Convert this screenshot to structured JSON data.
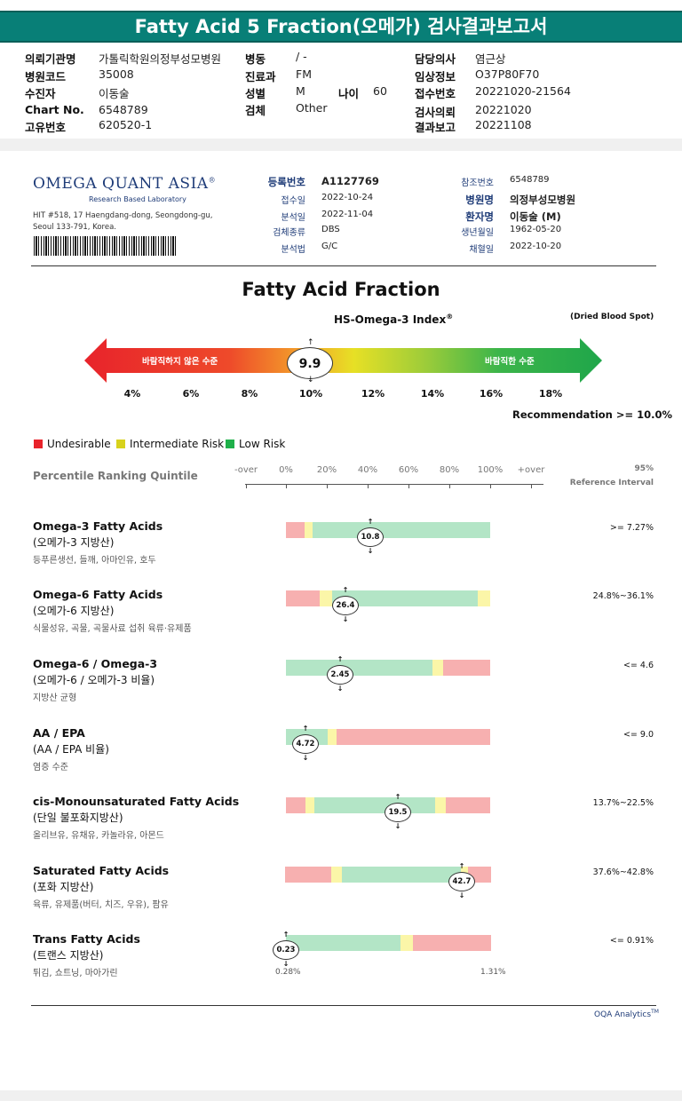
{
  "report": {
    "title": "Fatty Acid 5 Fraction(오메가) 검사결과보고서",
    "header": {
      "col1": [
        {
          "label": "의뢰기관명",
          "value": "가톨릭학원의정부성모병원"
        },
        {
          "label": "병원코드",
          "value": "35008"
        },
        {
          "label": "수진자",
          "value": "이동술"
        },
        {
          "label": "Chart No.",
          "value": "6548789"
        },
        {
          "label": "고유번호",
          "value": "620520-1"
        }
      ],
      "col2": [
        {
          "label": "병동",
          "value": "/ -"
        },
        {
          "label": "진료과",
          "value": "FM"
        },
        {
          "label": "성별",
          "value": "M"
        },
        {
          "label": "검체",
          "value": "Other"
        }
      ],
      "age": {
        "label": "나이",
        "value": "60"
      },
      "col3": [
        {
          "label": "담당의사",
          "value": "염근상"
        },
        {
          "label": "임상정보",
          "value": "O37P80F70"
        },
        {
          "label": "접수번호",
          "value": "20221020-21564"
        },
        {
          "label": "검사의뢰",
          "value": "20221020"
        },
        {
          "label": "결과보고",
          "value": "20221108"
        }
      ]
    }
  },
  "lab": {
    "logo": "OMEGA QUANT ASIA",
    "logo_mark": "®",
    "tagline": "Research Based Laboratory",
    "address1": "HIT #518, 17 Haengdang-dong, Seongdong-gu,",
    "address2": "Seoul 133-791, Korea.",
    "info_left": [
      {
        "label": "등록번호",
        "value": "A1127769",
        "strong": true
      },
      {
        "label": "접수일",
        "value": "2022-10-24"
      },
      {
        "label": "분석일",
        "value": "2022-11-04"
      },
      {
        "label": "검체종류",
        "value": "DBS"
      },
      {
        "label": "분석법",
        "value": "G/C"
      }
    ],
    "info_right": [
      {
        "label": "참조번호",
        "value": "6548789"
      },
      {
        "label": "병원명",
        "value": "의정부성모병원",
        "strong": true
      },
      {
        "label": "환자명",
        "value": "이동술 (M)",
        "strong": true
      },
      {
        "label": "생년월일",
        "value": "1962-05-20"
      },
      {
        "label": "채혈일",
        "value": "2022-10-20"
      }
    ]
  },
  "index": {
    "title": "Fatty Acid Fraction",
    "subtitle": "HS-Omega-3 Index",
    "subtitle_mark": "®",
    "note": "(Dried Blood Spot)",
    "left_label": "바람직하지 않은 수준",
    "right_label": "바람직한 수준",
    "score": "9.9",
    "ticks": [
      "4%",
      "6%",
      "8%",
      "10%",
      "12%",
      "14%",
      "16%",
      "18%"
    ],
    "recommendation": "Recommendation  >= 10.0%"
  },
  "legend": [
    {
      "label": "Undesirable",
      "color": "#e8232b"
    },
    {
      "label": "Intermediate Risk",
      "color": "#d8d21c"
    },
    {
      "label": "Low Risk",
      "color": "#1fb04a"
    }
  ],
  "percentile": {
    "title": "Percentile Ranking Quintile",
    "ticks": [
      "-over",
      "0%",
      "20%",
      "40%",
      "60%",
      "80%",
      "100%",
      "+over"
    ],
    "ref_top": "95%",
    "ref_bottom": "Reference Interval"
  },
  "colors": {
    "red": "#f7b0b0",
    "yellow": "#fbf6a8",
    "green": "#b3e5c6",
    "teal": "#087f77"
  },
  "results": [
    {
      "name": "Omega-3 Fatty Acids",
      "sub": "(오메가-3 지방산)",
      "desc": "등푸른생선, 들깨, 아마인유, 호두",
      "value": "10.8",
      "ref": ">= 7.27%"
    },
    {
      "name": "Omega-6 Fatty Acids",
      "sub": "(오메가-6 지방산)",
      "desc": "식물성유, 곡물, 곡물사료 섭취 육류·유제품",
      "value": "26.4",
      "ref": "24.8%~36.1%"
    },
    {
      "name": "Omega-6 / Omega-3",
      "sub": "(오메가-6 / 오메가-3 비율)",
      "desc": "지방산 균형",
      "value": "2.45",
      "ref": "<= 4.6"
    },
    {
      "name": "AA / EPA",
      "sub": "(AA / EPA 비율)",
      "desc": "염증 수준",
      "value": "4.72",
      "ref": "<= 9.0"
    },
    {
      "name": "cis-Monounsaturated Fatty Acids",
      "sub": "(단일 불포화지방산)",
      "desc": "올리브유, 유채유, 카놀라유, 아몬드",
      "value": "19.5",
      "ref": "13.7%~22.5%"
    },
    {
      "name": "Saturated Fatty Acids",
      "sub": "(포화 지방산)",
      "desc": "육류, 유제품(버터, 치즈, 우유), 팜유",
      "value": "42.7",
      "ref": "37.6%~42.8%"
    },
    {
      "name": "Trans Fatty Acids",
      "sub": "(트랜스 지방산)",
      "desc": "튀김, 쇼트닝, 마아가린",
      "value": "0.23",
      "ref": "<= 0.91%"
    }
  ],
  "trans_scale": {
    "min": "0.28%",
    "max": "1.31%"
  },
  "footer": {
    "text": "OQA Analytics",
    "mark": "TM"
  }
}
